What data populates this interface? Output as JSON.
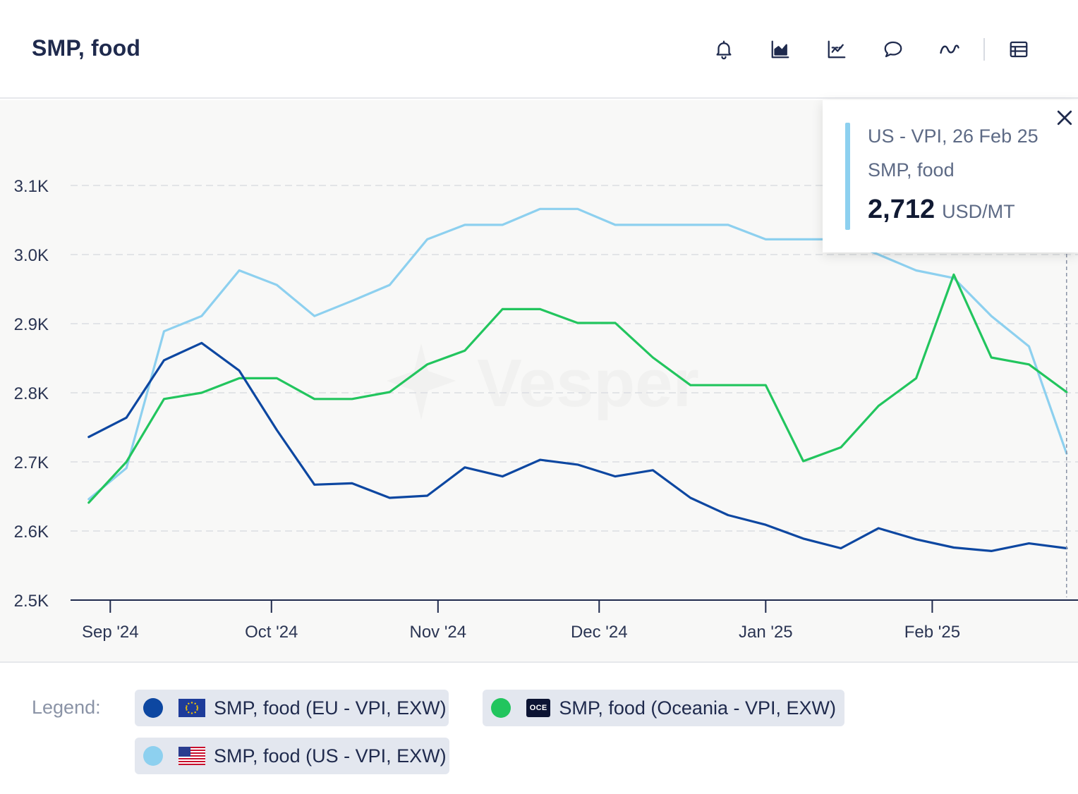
{
  "title": "SMP, food",
  "toolbar": {
    "icons": [
      "bell-icon",
      "area-chart-icon",
      "trend-chart-icon",
      "comment-icon",
      "wave-icon",
      "table-icon"
    ]
  },
  "tooltip": {
    "header": "US - VPI, 26 Feb 25",
    "series": "SMP, food",
    "value": "2,712",
    "unit": "USD/MT",
    "color": "#8dd0ef"
  },
  "legend": {
    "label": "Legend:",
    "items": [
      {
        "name": "SMP, food (EU - VPI, EXW)",
        "color": "#0d47a1",
        "icon": "eu-flag-icon"
      },
      {
        "name": "SMP, food (Oceania - VPI, EXW)",
        "color": "#22c55e",
        "icon": "oceania-badge-icon",
        "badge": "OCE"
      },
      {
        "name": "SMP, food (US - VPI, EXW)",
        "color": "#8dd0ef",
        "icon": "us-flag-icon"
      }
    ]
  },
  "watermark": "Vesper",
  "chart_data": {
    "type": "line",
    "title": "SMP, food",
    "ylim": [
      2500,
      3200
    ],
    "y_ticks": [
      {
        "value": 2500,
        "label": "2.5K"
      },
      {
        "value": 2600,
        "label": "2.6K"
      },
      {
        "value": 2700,
        "label": "2.7K"
      },
      {
        "value": 2800,
        "label": "2.8K"
      },
      {
        "value": 2900,
        "label": "2.9K"
      },
      {
        "value": 3000,
        "label": "3.0K"
      },
      {
        "value": 3100,
        "label": "3.1K"
      }
    ],
    "x_ticks": [
      {
        "date": "2024-09-01",
        "label": "Sep '24"
      },
      {
        "date": "2024-10-01",
        "label": "Oct '24"
      },
      {
        "date": "2024-11-01",
        "label": "Nov '24"
      },
      {
        "date": "2024-12-01",
        "label": "Dec '24"
      },
      {
        "date": "2025-01-01",
        "label": "Jan '25"
      },
      {
        "date": "2025-02-01",
        "label": "Feb '25"
      }
    ],
    "xlim": [
      "2024-08-25",
      "2025-03-01"
    ],
    "grid": true,
    "legend_position": "bottom",
    "hover_date": "2025-02-26",
    "x": [
      "2024-08-28",
      "2024-09-04",
      "2024-09-11",
      "2024-09-18",
      "2024-09-25",
      "2024-10-02",
      "2024-10-09",
      "2024-10-16",
      "2024-10-23",
      "2024-10-30",
      "2024-11-06",
      "2024-11-13",
      "2024-11-20",
      "2024-11-27",
      "2024-12-04",
      "2024-12-11",
      "2024-12-18",
      "2024-12-25",
      "2025-01-01",
      "2025-01-08",
      "2025-01-15",
      "2025-01-22",
      "2025-01-29",
      "2025-02-05",
      "2025-02-12",
      "2025-02-19",
      "2025-02-26"
    ],
    "series": [
      {
        "name": "SMP, food (EU - VPI, EXW)",
        "color": "#0d47a1",
        "values": [
          2736,
          2764,
          2847,
          2872,
          2832,
          2746,
          2667,
          2669,
          2648,
          2651,
          2692,
          2679,
          2703,
          2696,
          2679,
          2688,
          2648,
          2623,
          2609,
          2589,
          2575,
          2604,
          2588,
          2576,
          2571,
          2582,
          2575
        ]
      },
      {
        "name": "SMP, food (Oceania - VPI, EXW)",
        "color": "#22c55e",
        "values": [
          2641,
          2700,
          2791,
          2800,
          2821,
          2821,
          2791,
          2791,
          2801,
          2841,
          2861,
          2921,
          2921,
          2901,
          2901,
          2851,
          2811,
          2811,
          2811,
          2701,
          2721,
          2781,
          2821,
          2971,
          2851,
          2841,
          2801
        ]
      },
      {
        "name": "SMP, food (US - VPI, EXW)",
        "color": "#8dd0ef",
        "values": [
          2646,
          2691,
          2889,
          2911,
          2977,
          2956,
          2911,
          2933,
          2956,
          3022,
          3043,
          3043,
          3066,
          3066,
          3043,
          3043,
          3043,
          3043,
          3022,
          3022,
          3022,
          3000,
          2977,
          2966,
          2911,
          2867,
          2712
        ]
      }
    ]
  }
}
